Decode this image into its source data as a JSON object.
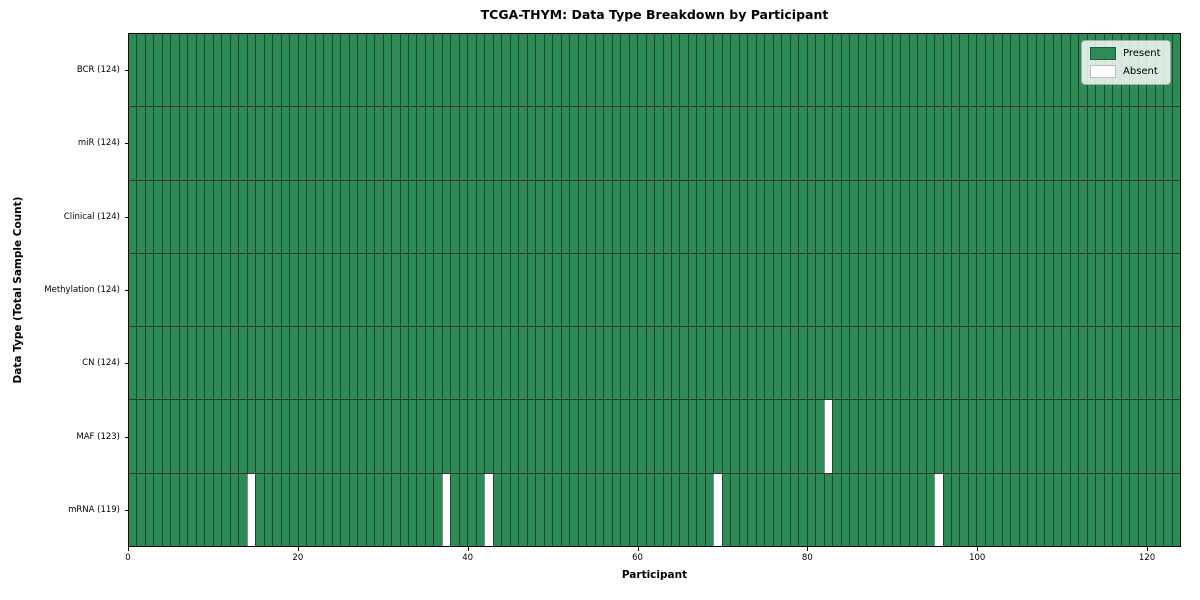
{
  "title": "TCGA-THYM: Data Type Breakdown by Participant",
  "axes": {
    "xlabel": "Participant",
    "ylabel": "Data Type (Total Sample Count)"
  },
  "legend": {
    "present_label": "Present",
    "absent_label": "Absent"
  },
  "colors": {
    "present": "#2e8b57",
    "absent": "#ffffff",
    "cell_edge": "rgba(0,0,0,0.45)",
    "row_divider": "rgba(0,0,0,0.8)",
    "spine": "#000000",
    "background": "#ffffff"
  },
  "chart_data": {
    "type": "heatmap",
    "title": "TCGA-THYM: Data Type Breakdown by Participant",
    "xlabel": "Participant",
    "ylabel": "Data Type (Total Sample Count)",
    "n_participants": 124,
    "xlim": [
      0,
      124
    ],
    "x_ticks": [
      0,
      20,
      40,
      60,
      80,
      100,
      120
    ],
    "grid": false,
    "legend_entries": [
      "Present",
      "Absent"
    ],
    "legend_position": "upper right",
    "rows": [
      {
        "label": "BCR (124)",
        "data_type": "BCR",
        "present_count": 124,
        "absent_participants": []
      },
      {
        "label": "miR (124)",
        "data_type": "miR",
        "present_count": 124,
        "absent_participants": []
      },
      {
        "label": "Clinical (124)",
        "data_type": "Clinical",
        "present_count": 124,
        "absent_participants": []
      },
      {
        "label": "Methylation (124)",
        "data_type": "Methylation",
        "present_count": 124,
        "absent_participants": []
      },
      {
        "label": "CN (124)",
        "data_type": "CN",
        "present_count": 124,
        "absent_participants": []
      },
      {
        "label": "MAF (123)",
        "data_type": "MAF",
        "present_count": 123,
        "absent_participants": [
          82
        ]
      },
      {
        "label": "mRNA (119)",
        "data_type": "mRNA",
        "present_count": 119,
        "absent_participants": [
          14,
          37,
          42,
          69,
          95
        ]
      }
    ]
  }
}
